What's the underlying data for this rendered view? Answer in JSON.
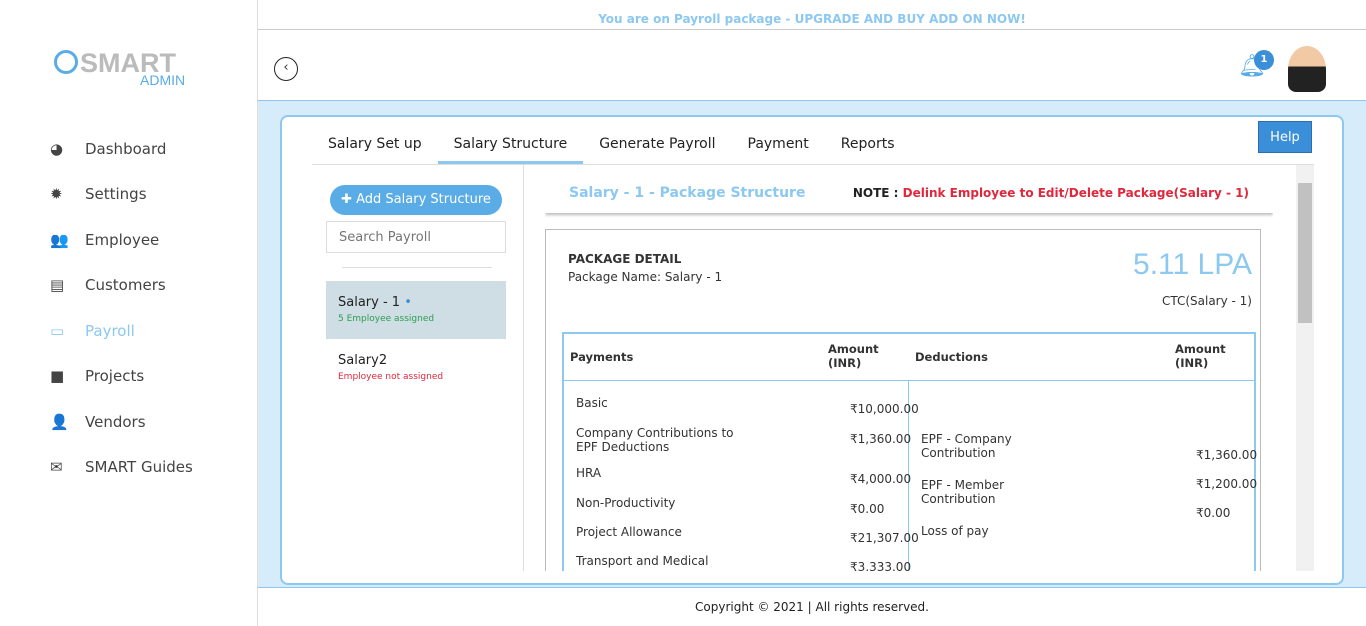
{
  "banner": "You are on Payroll package - UPGRADE AND BUY ADD ON NOW!",
  "logo": {
    "smart": "SMART",
    "admin": "ADMIN"
  },
  "sidebar": {
    "items": [
      {
        "label": "Dashboard",
        "icon": "dashboard-icon",
        "glyph": "◕"
      },
      {
        "label": "Settings",
        "icon": "gear-icon",
        "glyph": "✹"
      },
      {
        "label": "Employee",
        "icon": "users-icon",
        "glyph": "👥"
      },
      {
        "label": "Customers",
        "icon": "id-card-icon",
        "glyph": "▤"
      },
      {
        "label": "Payroll",
        "icon": "credit-card-icon",
        "glyph": "▭"
      },
      {
        "label": "Projects",
        "icon": "briefcase-icon",
        "glyph": "■"
      },
      {
        "label": "Vendors",
        "icon": "user-plus-icon",
        "glyph": "👤"
      },
      {
        "label": "SMART Guides",
        "icon": "envelope-icon",
        "glyph": "✉"
      }
    ]
  },
  "header": {
    "notifications": "1",
    "back_glyph": "‹"
  },
  "tabs": [
    "Salary Set up",
    "Salary Structure",
    "Generate Payroll",
    "Payment",
    "Reports"
  ],
  "help": "Help",
  "left": {
    "add": "✚ Add Salary Structure",
    "search_placeholder": "Search Payroll",
    "salaries": [
      {
        "name": "Salary - 1",
        "dot": " •",
        "status": "5 Employee assigned",
        "color": "#2e9e4f"
      },
      {
        "name": "Salary2",
        "dot": "",
        "status": "Employee not assigned",
        "color": "#e0283c"
      }
    ]
  },
  "package": {
    "title": "Salary - 1 - Package Structure",
    "note_label": "NOTE : ",
    "note": "Delink Employee to Edit/Delete Package(Salary - 1)",
    "detail": "PACKAGE DETAIL",
    "name": "Package Name: Salary - 1",
    "lpa": "5.11 LPA",
    "ctc": "CTC(Salary - 1)",
    "headers": {
      "payments": "Payments",
      "amount": "Amount",
      "inr": "(INR)",
      "deductions": "Deductions"
    },
    "payments": [
      [
        "Basic",
        "₹10,000.00"
      ],
      [
        "Company Contributions to EPF Deductions",
        "₹1,360.00"
      ],
      [
        "HRA",
        "₹4,000.00"
      ],
      [
        "Non-Productivity",
        "₹0.00"
      ],
      [
        "Project Allowance",
        "₹21,307.00"
      ],
      [
        "Transport and Medical",
        "₹3,333.00"
      ]
    ],
    "deductions": [
      [
        "EPF - Company Contribution",
        "₹1,360.00"
      ],
      [
        "EPF - Member Contribution",
        "₹1,200.00"
      ],
      [
        "Loss of pay",
        "₹0.00"
      ]
    ]
  },
  "footer": "Copyright © 2021 | All rights reserved."
}
